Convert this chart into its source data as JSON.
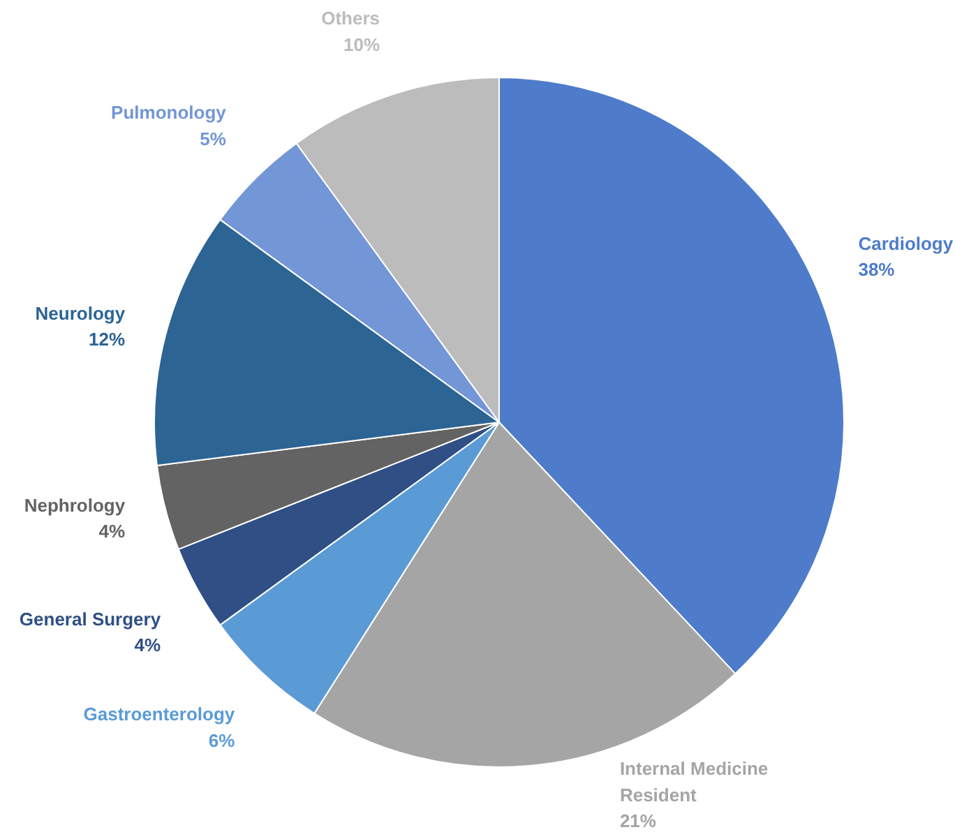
{
  "chart_data": {
    "type": "pie",
    "categories": [
      "Cardiology",
      "Internal Medicine Resident",
      "Gastroenterology",
      "General Surgery",
      "Nephrology",
      "Neurology",
      "Pulmonology",
      "Others"
    ],
    "values": [
      38,
      21,
      6,
      4,
      4,
      12,
      5,
      10
    ],
    "value_labels": [
      "38%",
      "21%",
      "6%",
      "4%",
      "4%",
      "12%",
      "5%",
      "10%"
    ],
    "colors": [
      "#4e7ccb",
      "#a5a5a5",
      "#5b9bd5",
      "#2f4f85",
      "#636363",
      "#2c6494",
      "#7396d6",
      "#bcbcbc"
    ]
  }
}
